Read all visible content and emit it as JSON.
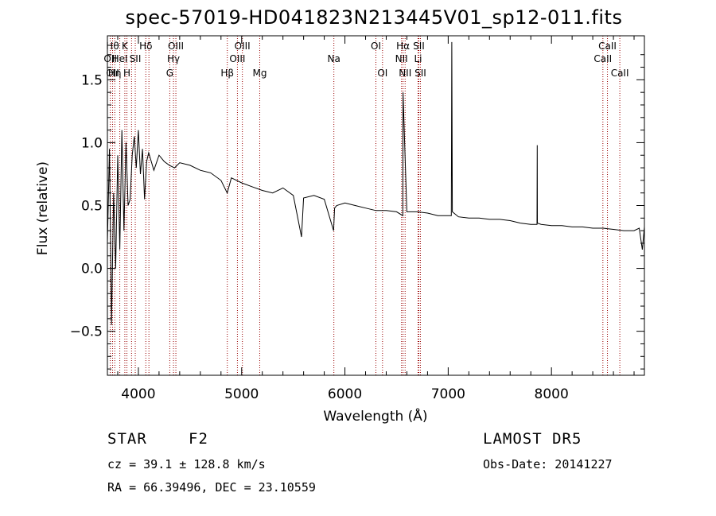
{
  "chart_data": {
    "type": "line",
    "title": "spec-57019-HD041823N213445V01_sp12-011.fits",
    "xlabel": "Wavelength (Å)",
    "ylabel": "Flux (relative)",
    "xlim": [
      3700,
      8900
    ],
    "ylim": [
      -0.85,
      1.85
    ],
    "x_ticks": [
      4000,
      5000,
      6000,
      7000,
      8000
    ],
    "y_ticks": [
      -0.5,
      0.0,
      0.5,
      1.0,
      1.5
    ],
    "x_tick_labels": [
      "4000",
      "5000",
      "6000",
      "7000",
      "8000"
    ],
    "y_tick_labels": [
      "−0.5",
      "0.0",
      "0.5",
      "1.0",
      "1.5"
    ],
    "series": [
      {
        "x": [
          3700,
          3720,
          3740,
          3760,
          3780,
          3800,
          3820,
          3840,
          3860,
          3880,
          3900,
          3920,
          3940,
          3960,
          3980,
          4000,
          4020,
          4040,
          4060,
          4080,
          4100,
          4150,
          4200,
          4250,
          4300,
          4350,
          4400,
          4500,
          4600,
          4700,
          4800,
          4860,
          4900,
          5000,
          5100,
          5200,
          5300,
          5400,
          5500,
          5580,
          5600,
          5700,
          5800,
          5890,
          5900,
          5920,
          6000,
          6100,
          6200,
          6300,
          6400,
          6500,
          6560,
          6563,
          6600,
          6700,
          6800,
          6900,
          7000,
          7030,
          7035,
          7040,
          7100,
          7200,
          7300,
          7400,
          7500,
          7600,
          7700,
          7800,
          7860,
          7862,
          7864,
          7900,
          8000,
          8100,
          8200,
          8300,
          8400,
          8500,
          8600,
          8700,
          8750,
          8800,
          8850,
          8880,
          8900
        ],
        "y": [
          0.2,
          0.95,
          -0.45,
          0.6,
          0.0,
          0.9,
          0.15,
          1.1,
          0.3,
          1.0,
          0.5,
          0.55,
          0.9,
          1.05,
          0.8,
          1.1,
          0.75,
          0.95,
          0.55,
          0.85,
          0.92,
          0.78,
          0.9,
          0.85,
          0.82,
          0.8,
          0.84,
          0.82,
          0.78,
          0.76,
          0.7,
          0.6,
          0.72,
          0.68,
          0.65,
          0.62,
          0.6,
          0.64,
          0.58,
          0.25,
          0.56,
          0.58,
          0.55,
          0.3,
          0.48,
          0.5,
          0.52,
          0.5,
          0.48,
          0.46,
          0.46,
          0.45,
          0.42,
          1.4,
          0.45,
          0.45,
          0.44,
          0.42,
          0.42,
          0.42,
          1.8,
          0.45,
          0.41,
          0.4,
          0.4,
          0.39,
          0.39,
          0.38,
          0.36,
          0.35,
          0.35,
          0.98,
          0.36,
          0.35,
          0.34,
          0.34,
          0.33,
          0.33,
          0.32,
          0.32,
          0.31,
          0.3,
          0.3,
          0.3,
          0.32,
          0.15,
          0.33
        ]
      }
    ],
    "lines": [
      {
        "wl": 3728,
        "labels": [
          {
            "t": "OII",
            "row": 2
          }
        ]
      },
      {
        "wl": 3750,
        "labels": [
          {
            "t": "Hθ",
            "row": 1
          },
          {
            "t": "OII",
            "row": 3
          }
        ]
      },
      {
        "wl": 3771,
        "labels": [
          {
            "t": "Hη",
            "row": 3
          }
        ]
      },
      {
        "wl": 3820,
        "labels": [
          {
            "t": "HeI",
            "row": 2
          }
        ]
      },
      {
        "wl": 3869,
        "labels": [
          {
            "t": "K",
            "row": 1
          }
        ]
      },
      {
        "wl": 3889,
        "labels": [
          {
            "t": "H",
            "row": 3
          }
        ]
      },
      {
        "wl": 3934,
        "labels": []
      },
      {
        "wl": 3970,
        "labels": [
          {
            "t": "SII",
            "row": 2
          }
        ]
      },
      {
        "wl": 4072,
        "labels": [
          {
            "t": "Hδ",
            "row": 1
          }
        ]
      },
      {
        "wl": 4102,
        "labels": []
      },
      {
        "wl": 4304,
        "labels": [
          {
            "t": "G",
            "row": 3
          }
        ]
      },
      {
        "wl": 4340,
        "labels": [
          {
            "t": "Hγ",
            "row": 2
          }
        ]
      },
      {
        "wl": 4363,
        "labels": [
          {
            "t": "OIII",
            "row": 1
          }
        ]
      },
      {
        "wl": 4861,
        "labels": [
          {
            "t": "Hβ",
            "row": 3
          }
        ]
      },
      {
        "wl": 4959,
        "labels": [
          {
            "t": "OIII",
            "row": 2
          }
        ]
      },
      {
        "wl": 5007,
        "labels": [
          {
            "t": "OIII",
            "row": 1
          }
        ]
      },
      {
        "wl": 5175,
        "labels": [
          {
            "t": "Mg",
            "row": 3
          }
        ]
      },
      {
        "wl": 5893,
        "labels": [
          {
            "t": "Na",
            "row": 2
          }
        ]
      },
      {
        "wl": 6300,
        "labels": [
          {
            "t": "OI",
            "row": 1
          }
        ]
      },
      {
        "wl": 6364,
        "labels": [
          {
            "t": "OI",
            "row": 3
          }
        ]
      },
      {
        "wl": 6548,
        "labels": [
          {
            "t": "NII",
            "row": 2
          }
        ]
      },
      {
        "wl": 6563,
        "labels": [
          {
            "t": "Hα",
            "row": 1
          }
        ]
      },
      {
        "wl": 6583,
        "labels": [
          {
            "t": "NII",
            "row": 3
          }
        ]
      },
      {
        "wl": 6708,
        "labels": [
          {
            "t": "Li",
            "row": 2
          }
        ]
      },
      {
        "wl": 6716,
        "labels": [
          {
            "t": "SII",
            "row": 1
          }
        ]
      },
      {
        "wl": 6731,
        "labels": [
          {
            "t": "SII",
            "row": 3
          }
        ]
      },
      {
        "wl": 8498,
        "labels": [
          {
            "t": "CaII",
            "row": 2
          }
        ]
      },
      {
        "wl": 8542,
        "labels": [
          {
            "t": "CaII",
            "row": 1
          }
        ]
      },
      {
        "wl": 8662,
        "labels": [
          {
            "t": "CaII",
            "row": 3
          }
        ]
      }
    ]
  },
  "info": {
    "object_class": "STAR",
    "subclass": "F2",
    "survey": "LAMOST DR5",
    "redshift": "cz = 39.1 ± 128.8 km/s",
    "obs_date": "Obs-Date: 20141227",
    "coords": "RA =  66.39496, DEC =  23.10559"
  },
  "colors": {
    "spectrum": "#000000",
    "line_marker": "#990000"
  }
}
